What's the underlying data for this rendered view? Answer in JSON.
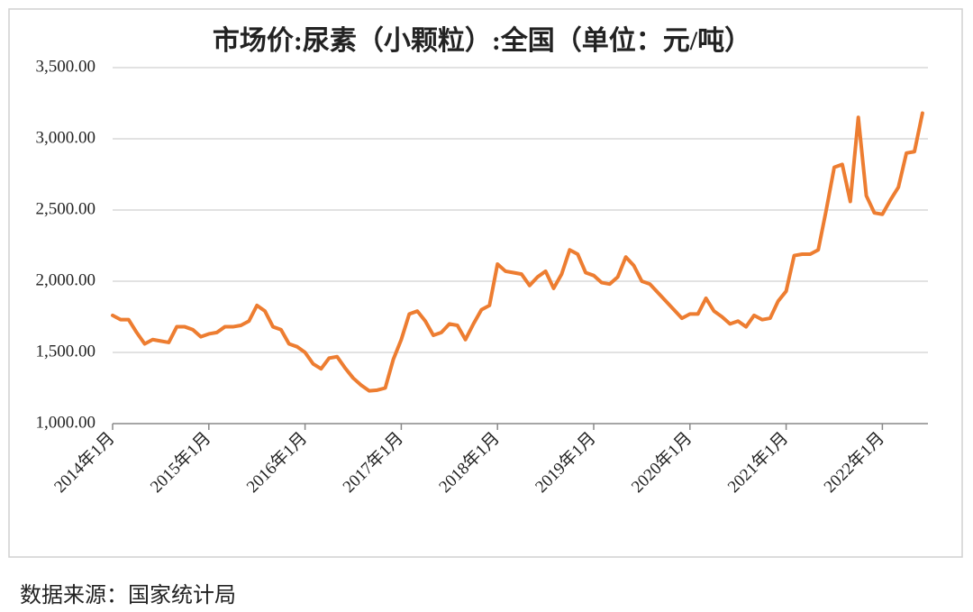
{
  "chart_data": {
    "type": "line",
    "title": "市场价:尿素（小颗粒）:全国（单位：元/吨）",
    "source": "数据来源：国家统计局",
    "categories": [
      "2014年1月",
      null,
      null,
      null,
      null,
      null,
      null,
      null,
      null,
      null,
      null,
      null,
      "2015年1月",
      null,
      null,
      null,
      null,
      null,
      null,
      null,
      null,
      null,
      null,
      null,
      "2016年1月",
      null,
      null,
      null,
      null,
      null,
      null,
      null,
      null,
      null,
      null,
      null,
      "2017年1月",
      null,
      null,
      null,
      null,
      null,
      null,
      null,
      null,
      null,
      null,
      null,
      "2018年1月",
      null,
      null,
      null,
      null,
      null,
      null,
      null,
      null,
      null,
      null,
      null,
      "2019年1月",
      null,
      null,
      null,
      null,
      null,
      null,
      null,
      null,
      null,
      null,
      null,
      "2020年1月",
      null,
      null,
      null,
      null,
      null,
      null,
      null,
      null,
      null,
      null,
      null,
      "2021年1月",
      null,
      null,
      null,
      null,
      null,
      null,
      null,
      null,
      null,
      null,
      null,
      "2022年1月",
      null,
      null,
      null,
      null,
      null
    ],
    "series": [
      {
        "name": "市场价:尿素（小颗粒）:全国",
        "color": "#ed7d31",
        "values": [
          1760,
          1730,
          1730,
          1640,
          1560,
          1590,
          1580,
          1570,
          1680,
          1680,
          1660,
          1610,
          1630,
          1640,
          1680,
          1680,
          1690,
          1720,
          1830,
          1790,
          1680,
          1660,
          1560,
          1540,
          1500,
          1420,
          1385,
          1460,
          1470,
          1390,
          1320,
          1270,
          1230,
          1235,
          1250,
          1450,
          1590,
          1770,
          1790,
          1720,
          1620,
          1640,
          1700,
          1690,
          1590,
          1700,
          1800,
          1830,
          2120,
          2070,
          2060,
          2050,
          1970,
          2030,
          2070,
          1950,
          2050,
          2220,
          2190,
          2060,
          2040,
          1990,
          1980,
          2030,
          2170,
          2110,
          2000,
          1980,
          1920,
          1860,
          1800,
          1740,
          1770,
          1770,
          1880,
          1790,
          1750,
          1700,
          1720,
          1680,
          1760,
          1730,
          1740,
          1860,
          1930,
          2180,
          2190,
          2190,
          2220,
          2500,
          2800,
          2820,
          2560,
          3150,
          2600,
          2480,
          2470,
          2570,
          2660,
          2900,
          2910,
          3180
        ]
      }
    ],
    "ylim": [
      1000,
      3500
    ],
    "yticks": [
      {
        "value": 1000,
        "label": "1,000.00"
      },
      {
        "value": 1500,
        "label": "1,500.00"
      },
      {
        "value": 2000,
        "label": "2,000.00"
      },
      {
        "value": 2500,
        "label": "2,500.00"
      },
      {
        "value": 3000,
        "label": "3,000.00"
      },
      {
        "value": 3500,
        "label": "3,500.00"
      }
    ],
    "grid": true
  }
}
